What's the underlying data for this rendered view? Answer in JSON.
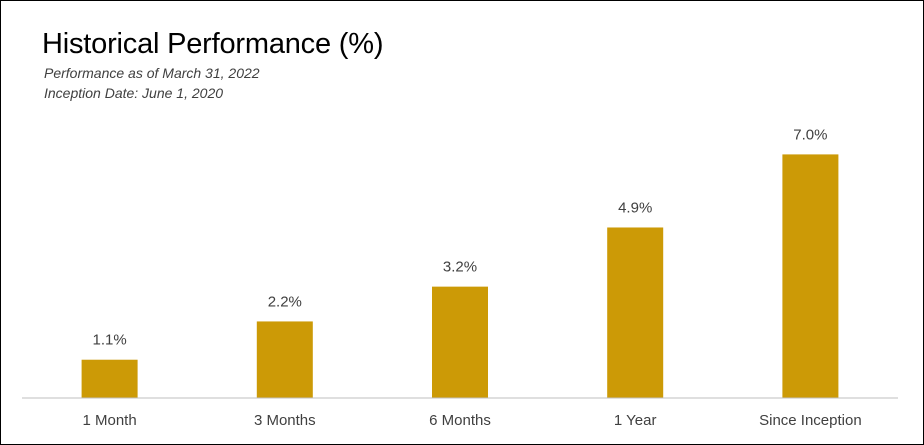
{
  "chart_data": {
    "type": "bar",
    "title": "Historical Performance (%)",
    "subtitle_lines": [
      "Performance as of March 31, 2022",
      "Inception Date: June 1, 2020"
    ],
    "categories": [
      "1 Month",
      "3 Months",
      "6 Months",
      "1 Year",
      "Since Inception"
    ],
    "values": [
      1.1,
      2.2,
      3.2,
      4.9,
      7.0
    ],
    "data_labels": [
      "1.1%",
      "2.2%",
      "3.2%",
      "4.9%",
      "7.0%"
    ],
    "xlabel": "",
    "ylabel": "",
    "ylim": [
      0,
      8
    ],
    "grid": false,
    "bar_color": "#CC9A06",
    "axis_color": "#BFBFBF"
  }
}
